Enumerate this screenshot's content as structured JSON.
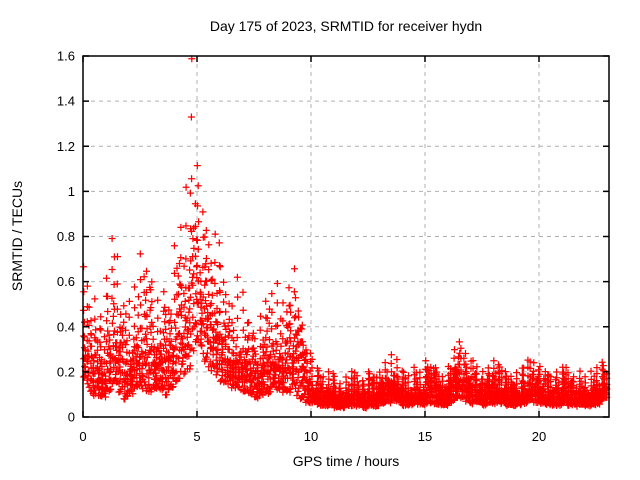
{
  "chart_data": {
    "type": "scatter",
    "title": "Day 175 of 2023, SRMTID for receiver hydn",
    "xlabel": "GPS time / hours",
    "ylabel": "SRMTID / TECUs",
    "xlim": [
      0,
      23.07
    ],
    "ylim": [
      0,
      1.6
    ],
    "xticks": [
      0,
      5,
      10,
      15,
      20
    ],
    "xtick_labels": [
      "0",
      "5",
      "10",
      "15",
      "20"
    ],
    "yticks": [
      0,
      0.2,
      0.4,
      0.6,
      0.8,
      1,
      1.2,
      1.4,
      1.6
    ],
    "ytick_labels": [
      "0",
      "0.2",
      "0.4",
      "0.6",
      "0.8",
      "1",
      "1.2",
      "1.4",
      "1.6"
    ],
    "grid": {
      "show": true,
      "color": "#b0b0b0",
      "dash": "4,4"
    },
    "legend": "none",
    "axis_color": "#000000",
    "background": "#ffffff",
    "marker": {
      "shape": "plus",
      "color": "#ff0000",
      "size": 7,
      "stroke_width": 1.25
    },
    "peak": {
      "t": 4.85,
      "value": 1.55
    },
    "bin_width": 0.25,
    "points_per_bin": 30,
    "seed": 42,
    "series": [
      {
        "name": "SRMTID",
        "bins": [
          [
            0.0,
            0.15,
            0.66
          ],
          [
            0.25,
            0.1,
            0.48
          ],
          [
            0.5,
            0.1,
            0.52
          ],
          [
            0.75,
            0.08,
            0.45
          ],
          [
            1.0,
            0.1,
            0.62
          ],
          [
            1.25,
            0.12,
            0.8
          ],
          [
            1.5,
            0.1,
            0.7
          ],
          [
            1.75,
            0.08,
            0.5
          ],
          [
            2.0,
            0.1,
            0.52
          ],
          [
            2.25,
            0.12,
            0.58
          ],
          [
            2.5,
            0.12,
            0.73
          ],
          [
            2.75,
            0.1,
            0.65
          ],
          [
            3.0,
            0.12,
            0.6
          ],
          [
            3.25,
            0.12,
            0.52
          ],
          [
            3.5,
            0.1,
            0.55
          ],
          [
            3.75,
            0.12,
            0.48
          ],
          [
            4.0,
            0.15,
            0.76
          ],
          [
            4.25,
            0.18,
            0.85
          ],
          [
            4.5,
            0.22,
            1.0
          ],
          [
            4.75,
            0.3,
            1.56
          ],
          [
            5.0,
            0.3,
            1.1
          ],
          [
            5.25,
            0.25,
            0.92
          ],
          [
            5.5,
            0.2,
            0.75
          ],
          [
            5.75,
            0.2,
            0.82
          ],
          [
            6.0,
            0.15,
            0.66
          ],
          [
            6.25,
            0.15,
            0.55
          ],
          [
            6.5,
            0.12,
            0.5
          ],
          [
            6.75,
            0.12,
            0.62
          ],
          [
            7.0,
            0.1,
            0.55
          ],
          [
            7.25,
            0.1,
            0.42
          ],
          [
            7.5,
            0.08,
            0.35
          ],
          [
            7.75,
            0.1,
            0.45
          ],
          [
            8.0,
            0.1,
            0.52
          ],
          [
            8.25,
            0.12,
            0.55
          ],
          [
            8.5,
            0.12,
            0.6
          ],
          [
            8.75,
            0.1,
            0.5
          ],
          [
            9.0,
            0.12,
            0.58
          ],
          [
            9.25,
            0.1,
            0.65
          ],
          [
            9.5,
            0.08,
            0.4
          ],
          [
            9.75,
            0.06,
            0.3
          ],
          [
            10.0,
            0.06,
            0.26
          ],
          [
            10.25,
            0.05,
            0.22
          ],
          [
            10.5,
            0.05,
            0.18
          ],
          [
            10.75,
            0.05,
            0.2
          ],
          [
            11.0,
            0.04,
            0.18
          ],
          [
            11.25,
            0.04,
            0.15
          ],
          [
            11.5,
            0.05,
            0.18
          ],
          [
            11.75,
            0.05,
            0.2
          ],
          [
            12.0,
            0.05,
            0.18
          ],
          [
            12.25,
            0.04,
            0.16
          ],
          [
            12.5,
            0.05,
            0.2
          ],
          [
            12.75,
            0.05,
            0.18
          ],
          [
            13.0,
            0.06,
            0.2
          ],
          [
            13.25,
            0.06,
            0.24
          ],
          [
            13.5,
            0.07,
            0.28
          ],
          [
            13.75,
            0.06,
            0.25
          ],
          [
            14.0,
            0.05,
            0.2
          ],
          [
            14.25,
            0.05,
            0.18
          ],
          [
            14.5,
            0.06,
            0.22
          ],
          [
            14.75,
            0.05,
            0.2
          ],
          [
            15.0,
            0.06,
            0.25
          ],
          [
            15.25,
            0.06,
            0.22
          ],
          [
            15.5,
            0.05,
            0.2
          ],
          [
            15.75,
            0.05,
            0.18
          ],
          [
            16.0,
            0.06,
            0.22
          ],
          [
            16.25,
            0.08,
            0.3
          ],
          [
            16.5,
            0.08,
            0.33
          ],
          [
            16.75,
            0.07,
            0.28
          ],
          [
            17.0,
            0.06,
            0.25
          ],
          [
            17.25,
            0.06,
            0.22
          ],
          [
            17.5,
            0.05,
            0.2
          ],
          [
            17.75,
            0.06,
            0.22
          ],
          [
            18.0,
            0.06,
            0.25
          ],
          [
            18.25,
            0.06,
            0.22
          ],
          [
            18.5,
            0.05,
            0.2
          ],
          [
            18.75,
            0.05,
            0.18
          ],
          [
            19.0,
            0.05,
            0.2
          ],
          [
            19.25,
            0.06,
            0.22
          ],
          [
            19.5,
            0.07,
            0.25
          ],
          [
            19.75,
            0.06,
            0.24
          ],
          [
            20.0,
            0.06,
            0.22
          ],
          [
            20.25,
            0.05,
            0.2
          ],
          [
            20.5,
            0.05,
            0.18
          ],
          [
            20.75,
            0.05,
            0.2
          ],
          [
            21.0,
            0.06,
            0.22
          ],
          [
            21.25,
            0.05,
            0.2
          ],
          [
            21.5,
            0.05,
            0.18
          ],
          [
            21.75,
            0.05,
            0.2
          ],
          [
            22.0,
            0.05,
            0.18
          ],
          [
            22.25,
            0.05,
            0.2
          ],
          [
            22.5,
            0.06,
            0.22
          ],
          [
            22.75,
            0.08,
            0.24
          ]
        ]
      }
    ]
  }
}
